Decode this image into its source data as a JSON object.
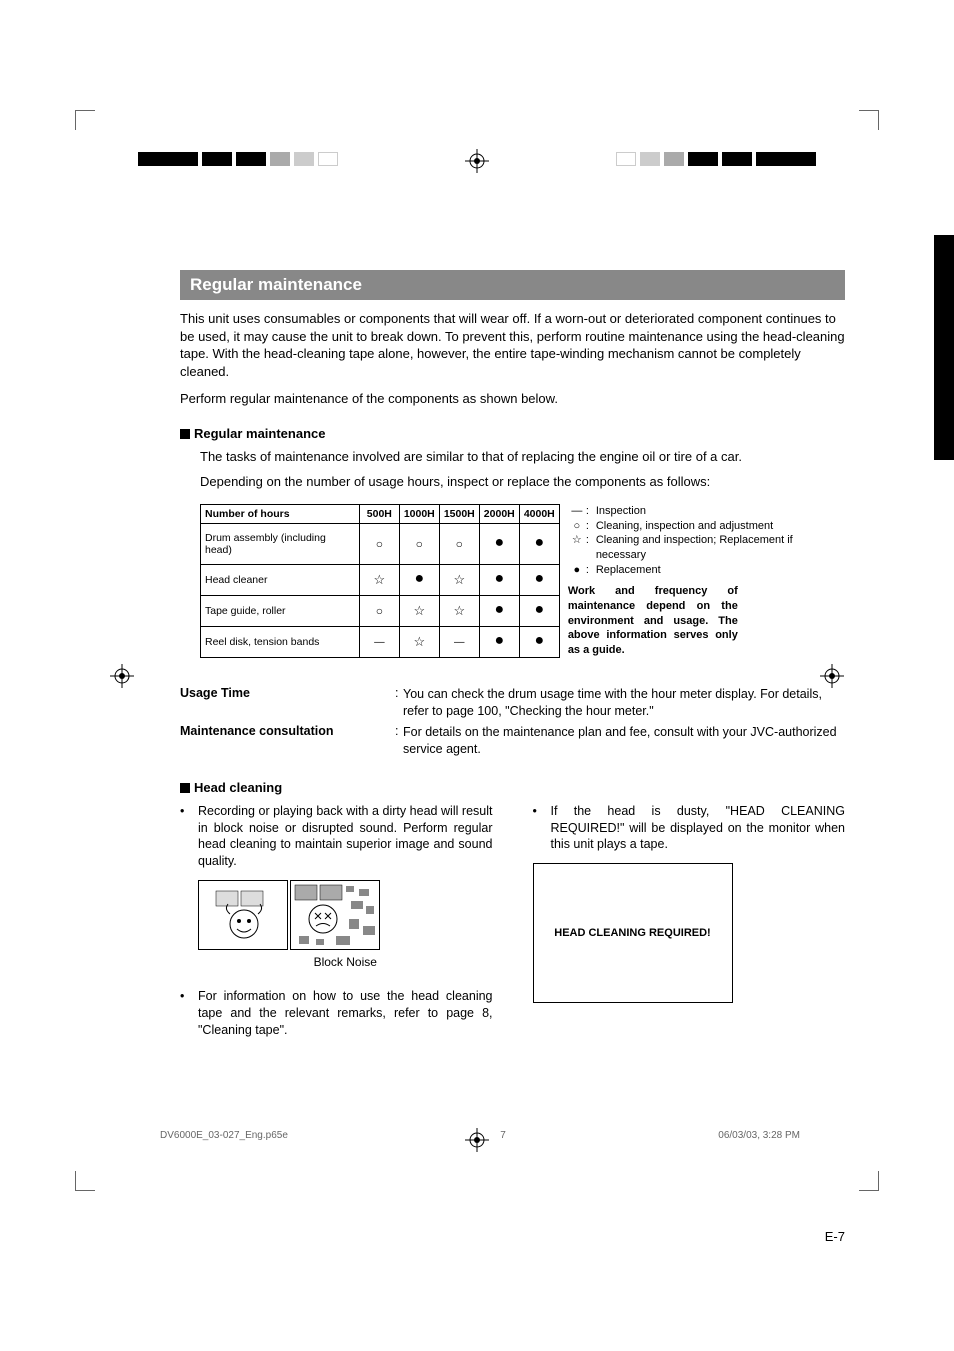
{
  "section_title": "Regular maintenance",
  "intro_p1": "This unit uses consumables or components that will wear off. If a worn-out or deteriorated component continues to be used, it may cause the unit to break down. To prevent this, perform routine maintenance using the head-cleaning tape. With the head-cleaning tape alone, however, the entire tape-winding mechanism cannot be completely cleaned.",
  "intro_p2": "Perform regular maintenance of the components as shown below.",
  "reg_heading": "Regular maintenance",
  "reg_line1": "The tasks of maintenance involved are similar to that of replacing the engine oil or tire of a car.",
  "reg_line2": "Depending on the number of usage hours, inspect or replace the components as follows:",
  "table": {
    "header": [
      "Number of hours",
      "500H",
      "1000H",
      "1500H",
      "2000H",
      "4000H"
    ],
    "rows": [
      {
        "label": "Drum assembly (including head)",
        "cells": [
          "○",
          "○",
          "○",
          "●",
          "●"
        ]
      },
      {
        "label": "Head cleaner",
        "cells": [
          "☆",
          "●",
          "☆",
          "●",
          "●"
        ]
      },
      {
        "label": "Tape guide, roller",
        "cells": [
          "○",
          "☆",
          "☆",
          "●",
          "●"
        ]
      },
      {
        "label": "Reel disk, tension bands",
        "cells": [
          "—",
          "☆",
          "—",
          "●",
          "●"
        ]
      }
    ]
  },
  "legend": {
    "items": [
      {
        "sym": "—",
        "txt": "Inspection"
      },
      {
        "sym": "○",
        "txt": "Cleaning, inspection and adjustment"
      },
      {
        "sym": "☆",
        "txt": "Cleaning and inspection; Replacement if necessary"
      },
      {
        "sym": "●",
        "txt": "Replacement"
      }
    ],
    "note": "Work and frequency of maintenance depend on the environment and usage. The above information serves only as a guide."
  },
  "defs": {
    "usage_label": "Usage Time",
    "usage_body": "You can check the drum usage time with the hour meter display. For details, refer to page 100, \"Checking the hour meter.\"",
    "maint_label": "Maintenance consultation",
    "maint_body": "For details on the maintenance plan and fee, consult with your JVC-authorized service agent."
  },
  "head_heading": "Head cleaning",
  "left_col": {
    "b1": "Recording or playing back with a dirty head will result in block noise or disrupted sound. Perform regular head cleaning to maintain superior image and sound quality.",
    "caption": "Block Noise",
    "b2": "For information on how to use the head cleaning tape and the relevant remarks, refer to page 8, \"Cleaning tape\"."
  },
  "right_col": {
    "b1": "If the head is dusty, \"HEAD CLEANING REQUIRED!\" will be displayed on the monitor when this unit plays a tape.",
    "monitor": "HEAD CLEANING REQUIRED!"
  },
  "page_num": "E-7",
  "footer": {
    "file": "DV6000E_03-027_Eng.p65e",
    "page": "7",
    "date": "06/03/03, 3:28 PM"
  }
}
